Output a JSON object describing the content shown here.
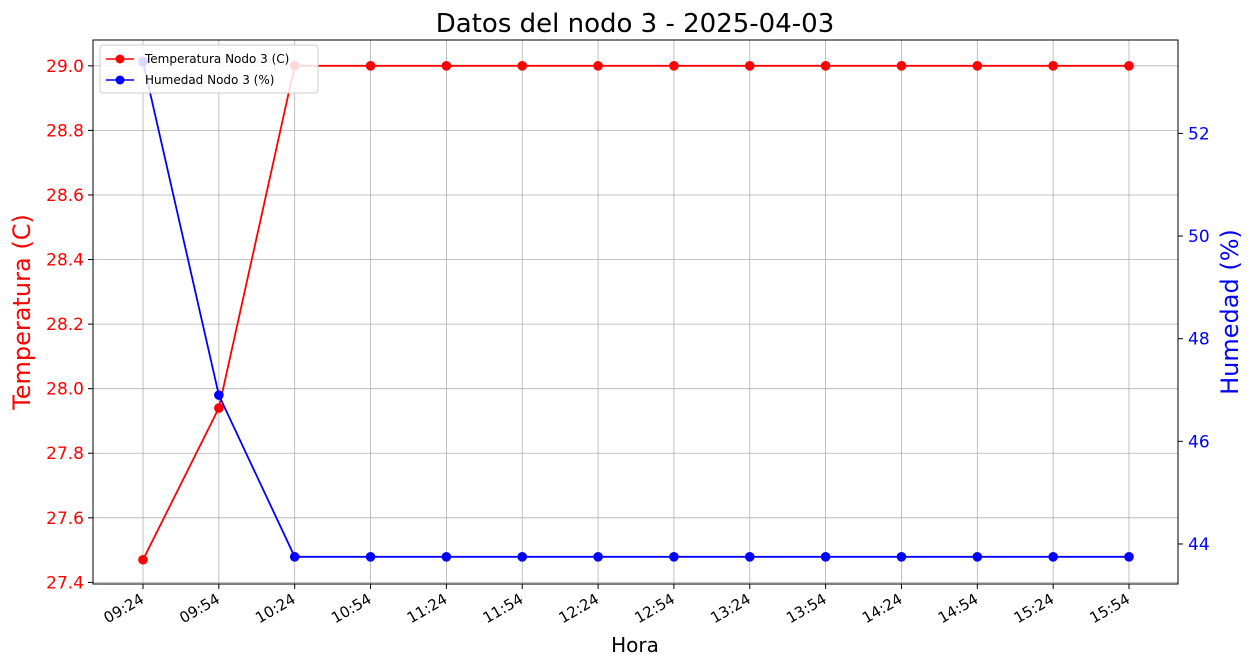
{
  "chart_data": {
    "type": "line",
    "title": "Datos del nodo 3 - 2025-04-03",
    "xlabel": "Hora",
    "categories": [
      "09:24",
      "09:54",
      "10:24",
      "10:54",
      "11:24",
      "11:54",
      "12:24",
      "12:54",
      "13:24",
      "13:54",
      "14:24",
      "14:54",
      "15:24",
      "15:54"
    ],
    "grid": true,
    "legend_position": "top-left",
    "left_axis": {
      "label": "Temperatura (C)",
      "color": "#ff0000",
      "ylim": [
        27.395,
        29.08
      ],
      "ticks": [
        27.4,
        27.6,
        27.8,
        28.0,
        28.2,
        28.4,
        28.6,
        28.8,
        29.0
      ],
      "tick_labels": [
        "27.4",
        "27.6",
        "27.8",
        "28.0",
        "28.2",
        "28.4",
        "28.6",
        "28.8",
        "29.0"
      ]
    },
    "right_axis": {
      "label": "Humedad (%)",
      "color": "#0000ff",
      "ylim": [
        43.22,
        53.82
      ],
      "ticks": [
        44,
        46,
        48,
        50,
        52
      ],
      "tick_labels": [
        "44",
        "46",
        "48",
        "50",
        "52"
      ]
    },
    "series": [
      {
        "name": "Temperatura Nodo 3 (C)",
        "axis": "left",
        "color": "#ff0000",
        "values": [
          27.47,
          27.94,
          29.0,
          29.0,
          29.0,
          29.0,
          29.0,
          29.0,
          29.0,
          29.0,
          29.0,
          29.0,
          29.0,
          29.0
        ]
      },
      {
        "name": "Humedad Nodo 3 (%)",
        "axis": "right",
        "color": "#0000ff",
        "values": [
          53.4,
          46.9,
          43.75,
          43.75,
          43.75,
          43.75,
          43.75,
          43.75,
          43.75,
          43.75,
          43.75,
          43.75,
          43.75,
          43.75
        ]
      }
    ]
  }
}
